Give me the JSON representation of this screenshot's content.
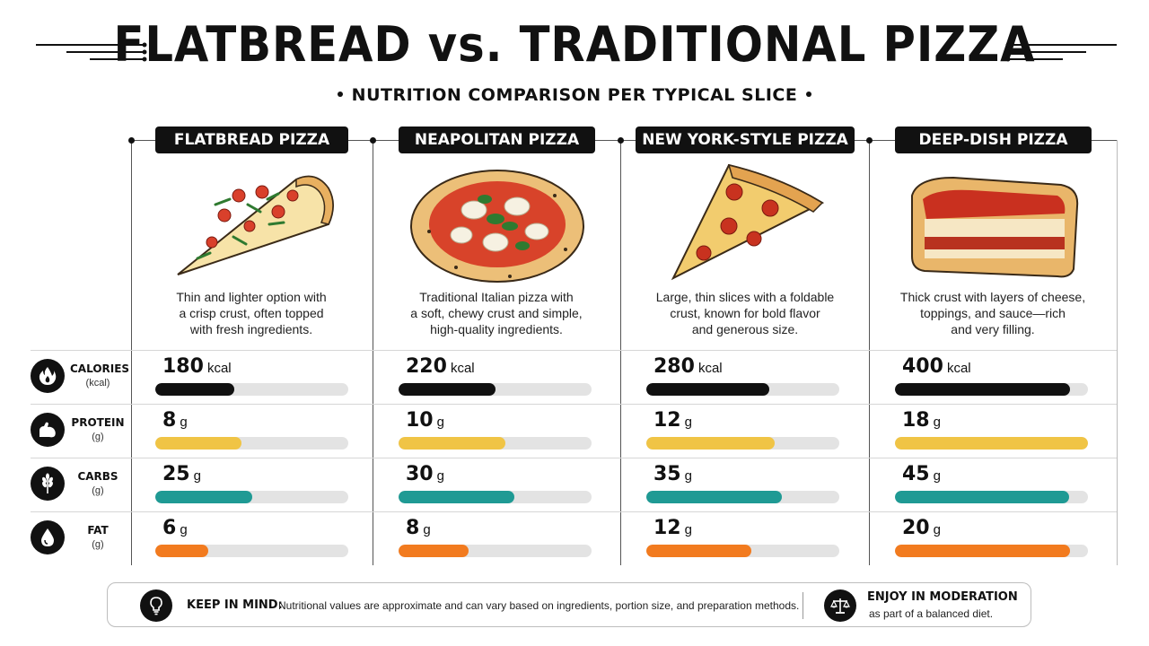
{
  "header": {
    "title": "FLATBREAD vs. TRADITIONAL PIZZA",
    "subtitle": "NUTRITION COMPARISON PER TYPICAL SLICE"
  },
  "columns": [
    {
      "name": "FLATBREAD PIZZA",
      "description": [
        "Thin and lighter option with",
        "a crisp crust, often topped",
        "with fresh ingredients."
      ],
      "calories": "180",
      "protein": "8",
      "carbs": "25",
      "fat": "6"
    },
    {
      "name": "NEAPOLITAN PIZZA",
      "description": [
        "Traditional Italian pizza with",
        "a soft, chewy crust and simple,",
        "high-quality ingredients."
      ],
      "calories": "220",
      "protein": "10",
      "carbs": "30",
      "fat": "8"
    },
    {
      "name": "NEW YORK-STYLE PIZZA",
      "description": [
        "Large, thin slices with a foldable",
        "crust, known for bold flavor",
        "and generous size."
      ],
      "calories": "280",
      "protein": "12",
      "carbs": "35",
      "fat": "12"
    },
    {
      "name": "DEEP-DISH PIZZA",
      "description": [
        "Thick crust with layers of cheese,",
        "toppings, and sauce—rich",
        "and very filling."
      ],
      "calories": "400",
      "protein": "18",
      "carbs": "45",
      "fat": "20"
    }
  ],
  "nutrients": [
    {
      "key": "calories",
      "label": "CALORIES",
      "unit_label": "(kcal)",
      "unit": "kcal",
      "max": 440,
      "color": "#111111",
      "icon": "flame-icon"
    },
    {
      "key": "protein",
      "label": "PROTEIN",
      "unit_label": "(g)",
      "unit": "g",
      "max": 18,
      "color": "#f0c445",
      "icon": "muscle-arm-icon"
    },
    {
      "key": "carbs",
      "label": "CARBS",
      "unit_label": "(g)",
      "unit": "g",
      "max": 50,
      "color": "#1f9a94",
      "icon": "wheat-icon"
    },
    {
      "key": "fat",
      "label": "FAT",
      "unit_label": "(g)",
      "unit": "g",
      "max": 22,
      "color": "#f27b1f",
      "icon": "droplet-icon"
    }
  ],
  "footer": {
    "keep_title": "KEEP IN MIND:",
    "keep_text": "Nutritional values are approximate and can vary based on ingredients, portion size, and preparation methods.",
    "enjoy_title": "ENJOY IN MODERATION",
    "enjoy_text": "as part of a balanced diet.",
    "keep_icon": "lightbulb-icon",
    "enjoy_icon": "balance-scale-icon"
  }
}
